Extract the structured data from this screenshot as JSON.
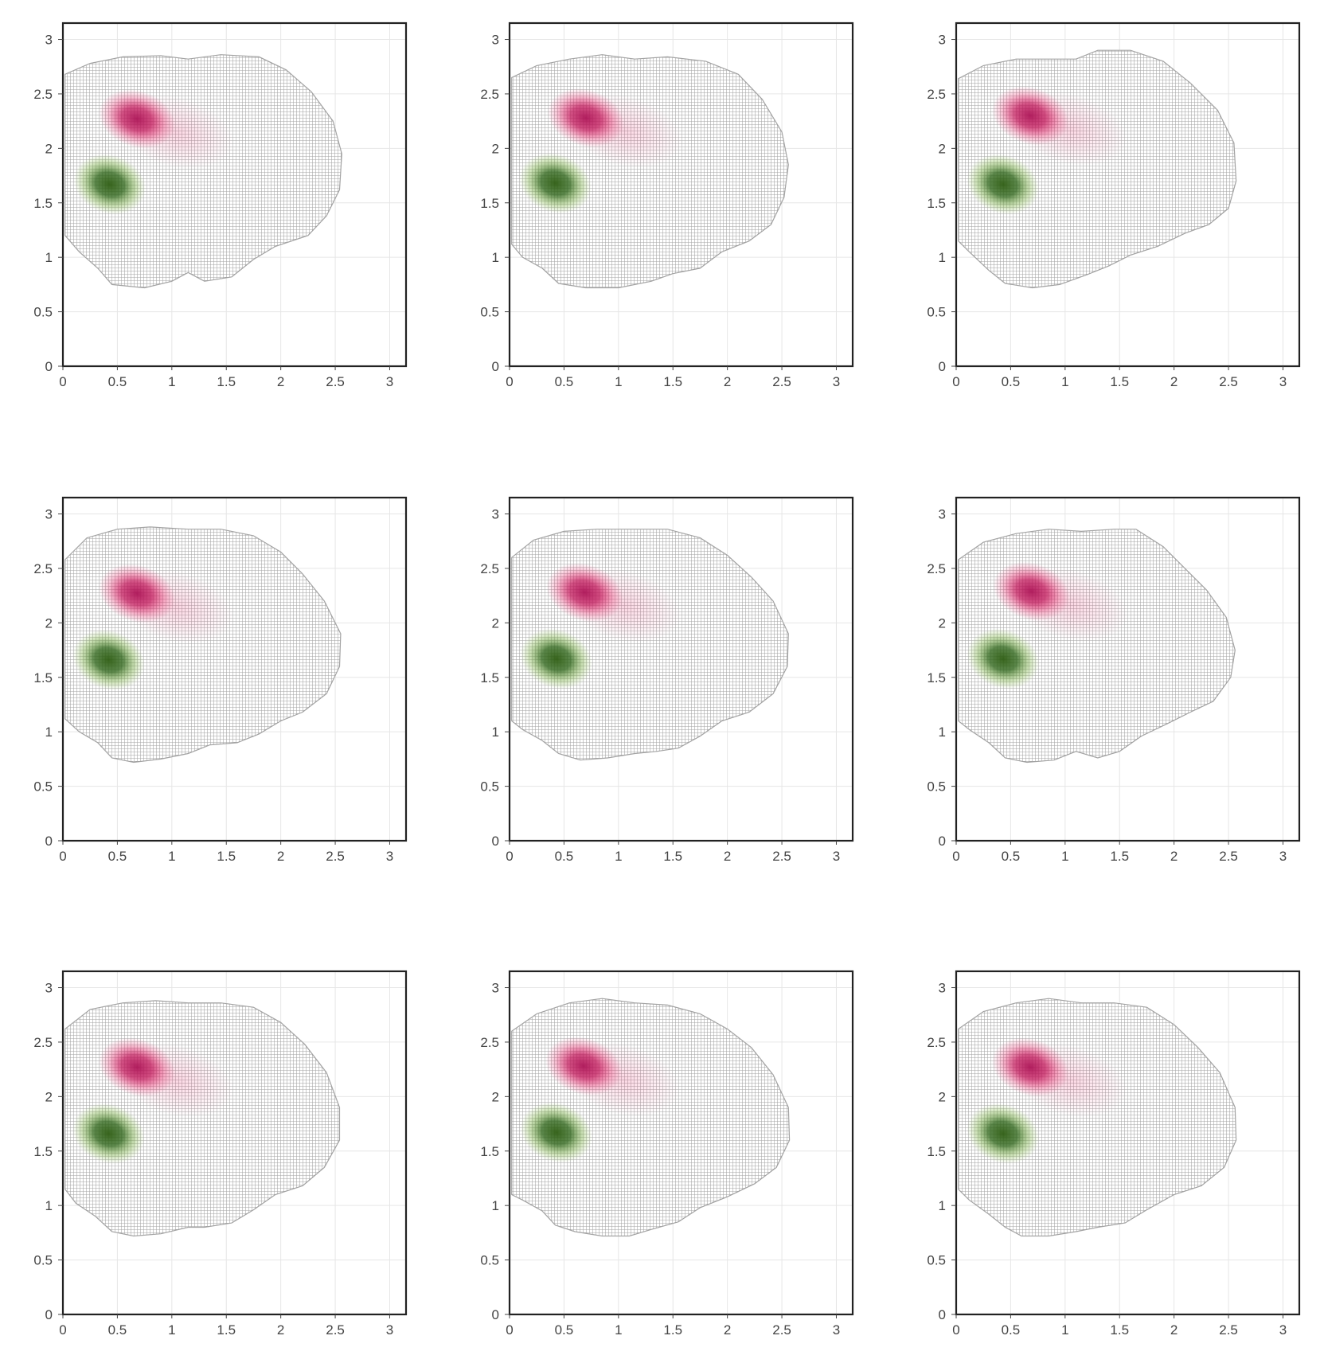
{
  "colors": {
    "background": "#ffffff",
    "grid": "#e6e6e6",
    "frame": "#222222",
    "tick_text": "#444444",
    "tissue_points": "#a3a3a3",
    "magenta_cluster": "#c2185b",
    "green_cluster": "#33691e"
  },
  "chart_data": [
    {
      "type": "scatter",
      "title": "",
      "xlabel": "",
      "ylabel": "",
      "xlim": [
        0,
        3.15
      ],
      "ylim": [
        0,
        3.15
      ],
      "x_ticks": [
        "0",
        "0.5",
        "1",
        "1.5",
        "2",
        "2.5",
        "3"
      ],
      "y_ticks": [
        "0",
        "0.5",
        "1",
        "1.5",
        "2",
        "2.5",
        "3"
      ],
      "grid": true,
      "outline": [
        [
          0.02,
          2.68
        ],
        [
          0.25,
          2.78
        ],
        [
          0.55,
          2.84
        ],
        [
          0.9,
          2.85
        ],
        [
          1.15,
          2.82
        ],
        [
          1.45,
          2.86
        ],
        [
          1.8,
          2.84
        ],
        [
          2.05,
          2.72
        ],
        [
          2.28,
          2.52
        ],
        [
          2.48,
          2.25
        ],
        [
          2.56,
          1.95
        ],
        [
          2.54,
          1.62
        ],
        [
          2.42,
          1.38
        ],
        [
          2.25,
          1.2
        ],
        [
          1.95,
          1.1
        ],
        [
          1.75,
          0.98
        ],
        [
          1.55,
          0.82
        ],
        [
          1.3,
          0.78
        ],
        [
          1.15,
          0.86
        ],
        [
          1.0,
          0.78
        ],
        [
          0.75,
          0.72
        ],
        [
          0.45,
          0.75
        ],
        [
          0.32,
          0.9
        ],
        [
          0.15,
          1.05
        ],
        [
          0.02,
          1.2
        ]
      ],
      "magenta_center": [
        0.68,
        2.27
      ],
      "green_center": [
        0.43,
        1.67
      ]
    },
    {
      "type": "scatter",
      "title": "",
      "xlabel": "",
      "ylabel": "",
      "xlim": [
        0,
        3.15
      ],
      "ylim": [
        0,
        3.15
      ],
      "x_ticks": [
        "0",
        "0.5",
        "1",
        "1.5",
        "2",
        "2.5",
        "3"
      ],
      "y_ticks": [
        "0",
        "0.5",
        "1",
        "1.5",
        "2",
        "2.5",
        "3"
      ],
      "grid": true,
      "outline": [
        [
          0.02,
          2.65
        ],
        [
          0.25,
          2.76
        ],
        [
          0.55,
          2.82
        ],
        [
          0.85,
          2.86
        ],
        [
          1.15,
          2.82
        ],
        [
          1.45,
          2.84
        ],
        [
          1.8,
          2.8
        ],
        [
          2.1,
          2.68
        ],
        [
          2.32,
          2.45
        ],
        [
          2.5,
          2.15
        ],
        [
          2.56,
          1.85
        ],
        [
          2.52,
          1.55
        ],
        [
          2.4,
          1.3
        ],
        [
          2.2,
          1.15
        ],
        [
          1.95,
          1.05
        ],
        [
          1.75,
          0.9
        ],
        [
          1.5,
          0.85
        ],
        [
          1.3,
          0.78
        ],
        [
          1.0,
          0.72
        ],
        [
          0.7,
          0.72
        ],
        [
          0.45,
          0.76
        ],
        [
          0.3,
          0.9
        ],
        [
          0.12,
          1.0
        ],
        [
          0.02,
          1.12
        ]
      ],
      "magenta_center": [
        0.7,
        2.28
      ],
      "green_center": [
        0.42,
        1.68
      ]
    },
    {
      "type": "scatter",
      "title": "",
      "xlabel": "",
      "ylabel": "",
      "xlim": [
        0,
        3.15
      ],
      "ylim": [
        0,
        3.15
      ],
      "x_ticks": [
        "0",
        "0.5",
        "1",
        "1.5",
        "2",
        "2.5",
        "3"
      ],
      "y_ticks": [
        "0",
        "0.5",
        "1",
        "1.5",
        "2",
        "2.5",
        "3"
      ],
      "grid": true,
      "outline": [
        [
          0.02,
          2.64
        ],
        [
          0.25,
          2.76
        ],
        [
          0.55,
          2.82
        ],
        [
          0.85,
          2.82
        ],
        [
          1.1,
          2.82
        ],
        [
          1.3,
          2.9
        ],
        [
          1.6,
          2.9
        ],
        [
          1.9,
          2.8
        ],
        [
          2.15,
          2.6
        ],
        [
          2.4,
          2.35
        ],
        [
          2.55,
          2.05
        ],
        [
          2.57,
          1.7
        ],
        [
          2.5,
          1.45
        ],
        [
          2.32,
          1.3
        ],
        [
          2.1,
          1.22
        ],
        [
          1.85,
          1.1
        ],
        [
          1.6,
          1.02
        ],
        [
          1.4,
          0.92
        ],
        [
          1.2,
          0.84
        ],
        [
          0.95,
          0.75
        ],
        [
          0.7,
          0.72
        ],
        [
          0.45,
          0.76
        ],
        [
          0.3,
          0.88
        ],
        [
          0.12,
          1.05
        ],
        [
          0.02,
          1.15
        ]
      ],
      "magenta_center": [
        0.68,
        2.3
      ],
      "green_center": [
        0.43,
        1.67
      ]
    },
    {
      "type": "scatter",
      "title": "",
      "xlabel": "",
      "ylabel": "",
      "xlim": [
        0,
        3.15
      ],
      "ylim": [
        0,
        3.15
      ],
      "x_ticks": [
        "0",
        "0.5",
        "1",
        "1.5",
        "2",
        "2.5",
        "3"
      ],
      "y_ticks": [
        "0",
        "0.5",
        "1",
        "1.5",
        "2",
        "2.5",
        "3"
      ],
      "grid": true,
      "outline": [
        [
          0.02,
          2.58
        ],
        [
          0.22,
          2.78
        ],
        [
          0.5,
          2.86
        ],
        [
          0.8,
          2.88
        ],
        [
          1.15,
          2.86
        ],
        [
          1.45,
          2.86
        ],
        [
          1.75,
          2.8
        ],
        [
          2.0,
          2.65
        ],
        [
          2.2,
          2.45
        ],
        [
          2.4,
          2.2
        ],
        [
          2.55,
          1.9
        ],
        [
          2.54,
          1.6
        ],
        [
          2.42,
          1.35
        ],
        [
          2.2,
          1.18
        ],
        [
          2.0,
          1.1
        ],
        [
          1.8,
          0.98
        ],
        [
          1.6,
          0.9
        ],
        [
          1.35,
          0.88
        ],
        [
          1.15,
          0.8
        ],
        [
          0.9,
          0.75
        ],
        [
          0.65,
          0.72
        ],
        [
          0.45,
          0.76
        ],
        [
          0.32,
          0.9
        ],
        [
          0.15,
          1.0
        ],
        [
          0.02,
          1.12
        ]
      ],
      "magenta_center": [
        0.68,
        2.27
      ],
      "green_center": [
        0.42,
        1.66
      ]
    },
    {
      "type": "scatter",
      "title": "",
      "xlabel": "",
      "ylabel": "",
      "xlim": [
        0,
        3.15
      ],
      "ylim": [
        0,
        3.15
      ],
      "x_ticks": [
        "0",
        "0.5",
        "1",
        "1.5",
        "2",
        "2.5",
        "3"
      ],
      "y_ticks": [
        "0",
        "0.5",
        "1",
        "1.5",
        "2",
        "2.5",
        "3"
      ],
      "grid": true,
      "outline": [
        [
          0.02,
          2.6
        ],
        [
          0.22,
          2.76
        ],
        [
          0.5,
          2.84
        ],
        [
          0.8,
          2.86
        ],
        [
          1.15,
          2.86
        ],
        [
          1.45,
          2.86
        ],
        [
          1.75,
          2.78
        ],
        [
          2.0,
          2.62
        ],
        [
          2.22,
          2.42
        ],
        [
          2.42,
          2.2
        ],
        [
          2.56,
          1.9
        ],
        [
          2.55,
          1.6
        ],
        [
          2.42,
          1.35
        ],
        [
          2.2,
          1.18
        ],
        [
          1.95,
          1.1
        ],
        [
          1.75,
          0.96
        ],
        [
          1.55,
          0.85
        ],
        [
          1.35,
          0.82
        ],
        [
          1.15,
          0.8
        ],
        [
          0.9,
          0.76
        ],
        [
          0.65,
          0.74
        ],
        [
          0.45,
          0.8
        ],
        [
          0.3,
          0.92
        ],
        [
          0.12,
          1.02
        ],
        [
          0.02,
          1.1
        ]
      ],
      "magenta_center": [
        0.69,
        2.28
      ],
      "green_center": [
        0.43,
        1.67
      ]
    },
    {
      "type": "scatter",
      "title": "",
      "xlabel": "",
      "ylabel": "",
      "xlim": [
        0,
        3.15
      ],
      "ylim": [
        0,
        3.15
      ],
      "x_ticks": [
        "0",
        "0.5",
        "1",
        "1.5",
        "2",
        "2.5",
        "3"
      ],
      "y_ticks": [
        "0",
        "0.5",
        "1",
        "1.5",
        "2",
        "2.5",
        "3"
      ],
      "grid": true,
      "outline": [
        [
          0.02,
          2.58
        ],
        [
          0.25,
          2.74
        ],
        [
          0.55,
          2.82
        ],
        [
          0.85,
          2.86
        ],
        [
          1.15,
          2.84
        ],
        [
          1.45,
          2.86
        ],
        [
          1.65,
          2.86
        ],
        [
          1.9,
          2.7
        ],
        [
          2.1,
          2.5
        ],
        [
          2.3,
          2.3
        ],
        [
          2.48,
          2.05
        ],
        [
          2.56,
          1.75
        ],
        [
          2.52,
          1.5
        ],
        [
          2.36,
          1.28
        ],
        [
          2.15,
          1.18
        ],
        [
          1.95,
          1.08
        ],
        [
          1.7,
          0.96
        ],
        [
          1.5,
          0.82
        ],
        [
          1.3,
          0.76
        ],
        [
          1.1,
          0.82
        ],
        [
          0.9,
          0.74
        ],
        [
          0.65,
          0.72
        ],
        [
          0.45,
          0.76
        ],
        [
          0.3,
          0.9
        ],
        [
          0.12,
          1.02
        ],
        [
          0.02,
          1.1
        ]
      ],
      "magenta_center": [
        0.69,
        2.29
      ],
      "green_center": [
        0.43,
        1.67
      ]
    },
    {
      "type": "scatter",
      "title": "",
      "xlabel": "",
      "ylabel": "",
      "xlim": [
        0,
        3.15
      ],
      "ylim": [
        0,
        3.15
      ],
      "x_ticks": [
        "0",
        "0.5",
        "1",
        "1.5",
        "2",
        "2.5",
        "3"
      ],
      "y_ticks": [
        "0",
        "0.5",
        "1",
        "1.5",
        "2",
        "2.5",
        "3"
      ],
      "grid": true,
      "outline": [
        [
          0.02,
          2.62
        ],
        [
          0.25,
          2.8
        ],
        [
          0.55,
          2.86
        ],
        [
          0.85,
          2.88
        ],
        [
          1.15,
          2.86
        ],
        [
          1.45,
          2.86
        ],
        [
          1.75,
          2.82
        ],
        [
          2.0,
          2.68
        ],
        [
          2.22,
          2.48
        ],
        [
          2.42,
          2.22
        ],
        [
          2.54,
          1.9
        ],
        [
          2.54,
          1.6
        ],
        [
          2.4,
          1.35
        ],
        [
          2.2,
          1.18
        ],
        [
          1.95,
          1.1
        ],
        [
          1.75,
          0.96
        ],
        [
          1.55,
          0.84
        ],
        [
          1.3,
          0.8
        ],
        [
          1.15,
          0.8
        ],
        [
          0.9,
          0.74
        ],
        [
          0.65,
          0.72
        ],
        [
          0.45,
          0.76
        ],
        [
          0.3,
          0.9
        ],
        [
          0.12,
          1.02
        ],
        [
          0.02,
          1.15
        ]
      ],
      "magenta_center": [
        0.68,
        2.27
      ],
      "green_center": [
        0.42,
        1.66
      ]
    },
    {
      "type": "scatter",
      "title": "",
      "xlabel": "",
      "ylabel": "",
      "xlim": [
        0,
        3.15
      ],
      "ylim": [
        0,
        3.15
      ],
      "x_ticks": [
        "0",
        "0.5",
        "1",
        "1.5",
        "2",
        "2.5",
        "3"
      ],
      "y_ticks": [
        "0",
        "0.5",
        "1",
        "1.5",
        "2",
        "2.5",
        "3"
      ],
      "grid": true,
      "outline": [
        [
          0.02,
          2.6
        ],
        [
          0.25,
          2.76
        ],
        [
          0.55,
          2.86
        ],
        [
          0.85,
          2.9
        ],
        [
          1.15,
          2.86
        ],
        [
          1.45,
          2.84
        ],
        [
          1.75,
          2.76
        ],
        [
          2.0,
          2.62
        ],
        [
          2.22,
          2.45
        ],
        [
          2.42,
          2.2
        ],
        [
          2.56,
          1.9
        ],
        [
          2.57,
          1.6
        ],
        [
          2.45,
          1.35
        ],
        [
          2.25,
          1.2
        ],
        [
          2.0,
          1.08
        ],
        [
          1.75,
          0.98
        ],
        [
          1.55,
          0.85
        ],
        [
          1.3,
          0.78
        ],
        [
          1.1,
          0.72
        ],
        [
          0.85,
          0.72
        ],
        [
          0.6,
          0.76
        ],
        [
          0.42,
          0.82
        ],
        [
          0.3,
          0.95
        ],
        [
          0.12,
          1.05
        ],
        [
          0.02,
          1.1
        ]
      ],
      "magenta_center": [
        0.68,
        2.28
      ],
      "green_center": [
        0.43,
        1.67
      ]
    },
    {
      "type": "scatter",
      "title": "",
      "xlabel": "",
      "ylabel": "",
      "xlim": [
        0,
        3.15
      ],
      "ylim": [
        0,
        3.15
      ],
      "x_ticks": [
        "0",
        "0.5",
        "1",
        "1.5",
        "2",
        "2.5",
        "3"
      ],
      "y_ticks": [
        "0",
        "0.5",
        "1",
        "1.5",
        "2",
        "2.5",
        "3"
      ],
      "grid": true,
      "outline": [
        [
          0.02,
          2.62
        ],
        [
          0.25,
          2.78
        ],
        [
          0.55,
          2.86
        ],
        [
          0.85,
          2.9
        ],
        [
          1.15,
          2.86
        ],
        [
          1.45,
          2.86
        ],
        [
          1.75,
          2.82
        ],
        [
          2.0,
          2.66
        ],
        [
          2.22,
          2.45
        ],
        [
          2.42,
          2.22
        ],
        [
          2.56,
          1.9
        ],
        [
          2.57,
          1.6
        ],
        [
          2.46,
          1.35
        ],
        [
          2.25,
          1.18
        ],
        [
          2.0,
          1.1
        ],
        [
          1.75,
          0.96
        ],
        [
          1.55,
          0.84
        ],
        [
          1.3,
          0.8
        ],
        [
          1.1,
          0.76
        ],
        [
          0.85,
          0.72
        ],
        [
          0.6,
          0.72
        ],
        [
          0.45,
          0.8
        ],
        [
          0.3,
          0.92
        ],
        [
          0.12,
          1.05
        ],
        [
          0.02,
          1.15
        ]
      ],
      "magenta_center": [
        0.68,
        2.27
      ],
      "green_center": [
        0.43,
        1.66
      ]
    }
  ]
}
